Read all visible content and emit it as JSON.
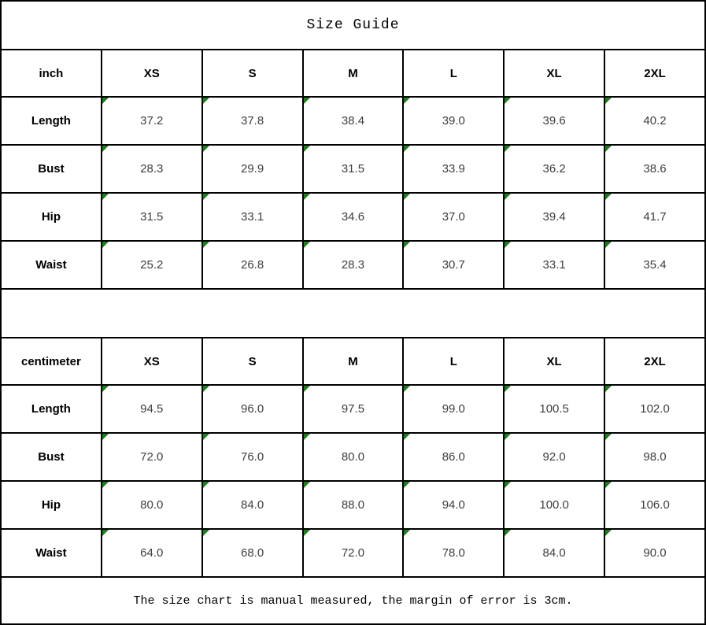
{
  "title": "Size Guide",
  "footer_note": "The size chart is manual measured, the margin of error is 3cm.",
  "colors": {
    "border": "#000000",
    "cell_flag_green": "#1e7e1e",
    "header_text": "#000000",
    "value_text": "#3d3d3d",
    "background": "#ffffff"
  },
  "tables": [
    {
      "unit_label": "inch",
      "size_headers": [
        "XS",
        "S",
        "M",
        "L",
        "XL",
        "2XL"
      ],
      "rows": [
        {
          "label": "Length",
          "values": [
            "37.2",
            "37.8",
            "38.4",
            "39.0",
            "39.6",
            "40.2"
          ]
        },
        {
          "label": "Bust",
          "values": [
            "28.3",
            "29.9",
            "31.5",
            "33.9",
            "36.2",
            "38.6"
          ]
        },
        {
          "label": "Hip",
          "values": [
            "31.5",
            "33.1",
            "34.6",
            "37.0",
            "39.4",
            "41.7"
          ]
        },
        {
          "label": "Waist",
          "values": [
            "25.2",
            "26.8",
            "28.3",
            "30.7",
            "33.1",
            "35.4"
          ]
        }
      ]
    },
    {
      "unit_label": "centimeter",
      "size_headers": [
        "XS",
        "S",
        "M",
        "L",
        "XL",
        "2XL"
      ],
      "rows": [
        {
          "label": "Length",
          "values": [
            "94.5",
            "96.0",
            "97.5",
            "99.0",
            "100.5",
            "102.0"
          ]
        },
        {
          "label": "Bust",
          "values": [
            "72.0",
            "76.0",
            "80.0",
            "86.0",
            "92.0",
            "98.0"
          ]
        },
        {
          "label": "Hip",
          "values": [
            "80.0",
            "84.0",
            "88.0",
            "94.0",
            "100.0",
            "106.0"
          ]
        },
        {
          "label": "Waist",
          "values": [
            "64.0",
            "68.0",
            "72.0",
            "78.0",
            "84.0",
            "90.0"
          ]
        }
      ]
    }
  ]
}
